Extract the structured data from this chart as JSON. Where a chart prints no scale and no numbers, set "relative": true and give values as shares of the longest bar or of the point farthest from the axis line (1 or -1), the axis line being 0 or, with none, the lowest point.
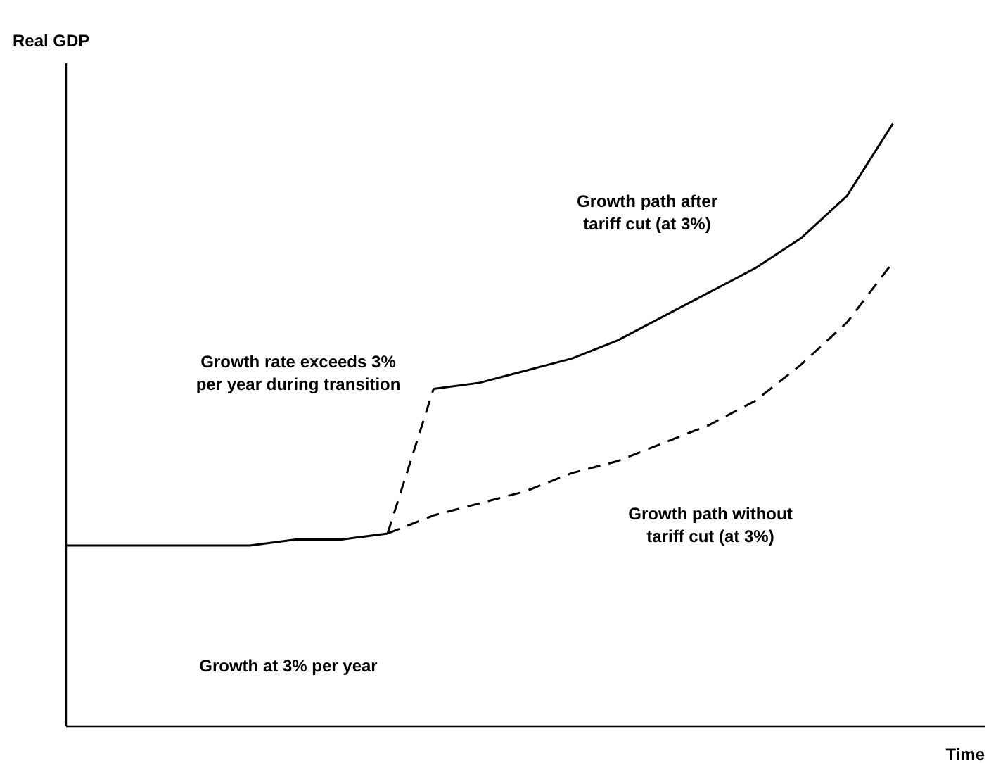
{
  "chart_data": {
    "type": "line",
    "relative": true,
    "xlabel": "Time",
    "ylabel": "Real GDP",
    "categories": [
      null,
      null,
      null,
      null,
      null,
      null,
      null,
      null,
      null,
      null,
      null,
      null,
      null,
      null,
      null,
      null,
      null,
      null,
      null
    ],
    "series": [
      {
        "color": "#000000",
        "line_style": "solid",
        "values": [
          0.3,
          0.3,
          0.3,
          0.3,
          0.3,
          0.31,
          0.31,
          0.32,
          null,
          null,
          null,
          null,
          null,
          null,
          null,
          null,
          null,
          null,
          null
        ]
      },
      {
        "color": "#000000",
        "line_style": "dashed",
        "values": [
          null,
          null,
          null,
          null,
          null,
          null,
          null,
          0.32,
          0.56,
          null,
          null,
          null,
          null,
          null,
          null,
          null,
          null,
          null,
          null
        ]
      },
      {
        "color": "#000000",
        "line_style": "solid",
        "values": [
          null,
          null,
          null,
          null,
          null,
          null,
          null,
          null,
          0.56,
          0.57,
          0.59,
          0.61,
          0.64,
          0.68,
          0.72,
          0.76,
          0.81,
          0.88,
          1.0
        ]
      },
      {
        "color": "#000000",
        "line_style": "dashed",
        "values": [
          null,
          null,
          null,
          null,
          null,
          null,
          null,
          0.32,
          0.35,
          0.37,
          0.39,
          0.42,
          0.44,
          0.47,
          0.5,
          0.54,
          0.6,
          0.67,
          0.77
        ]
      }
    ],
    "annotations": [
      "Growth path after\ntariff cut (at 3%)",
      "Growth rate exceeds 3%\nper year during transition",
      "Growth path without\ntariff cut (at 3%)",
      "Growth at 3% per year"
    ]
  }
}
